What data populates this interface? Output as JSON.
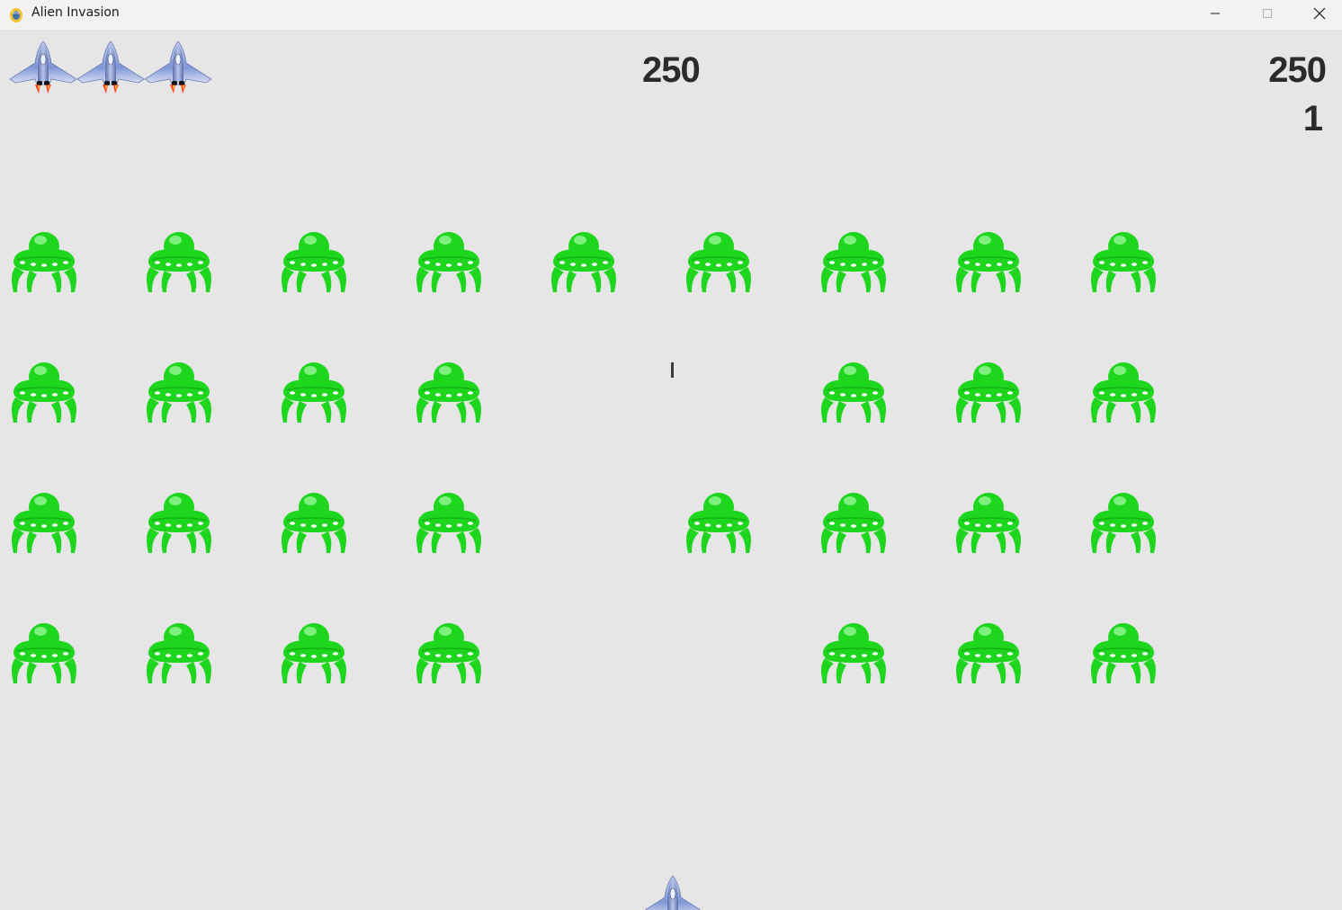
{
  "window": {
    "title": "Alien Invasion",
    "app_icon": "pygame-snake-icon",
    "controls": [
      "minimize-icon",
      "maximize-icon",
      "close-icon"
    ]
  },
  "hud": {
    "score": "250",
    "high_score": "250",
    "level": "1",
    "ships_left": 3
  },
  "colors": {
    "background": "#e6e6e6",
    "alien": "#1fd61f",
    "ship_body": "#8aa0d8",
    "flame": "#ff3b1f"
  },
  "fleet": {
    "rows": [
      [
        1,
        1,
        1,
        1,
        1,
        1,
        1,
        1,
        1
      ],
      [
        1,
        1,
        1,
        1,
        0,
        0,
        1,
        1,
        1
      ],
      [
        1,
        1,
        1,
        1,
        0,
        1,
        1,
        1,
        1
      ],
      [
        1,
        1,
        1,
        1,
        0,
        0,
        1,
        1,
        1
      ]
    ]
  },
  "bullets": 1
}
